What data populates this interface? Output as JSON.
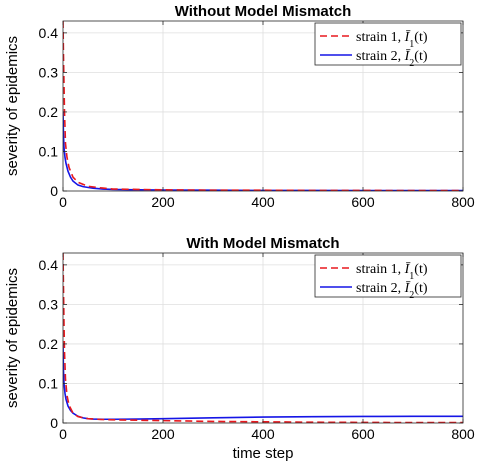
{
  "chart_data": [
    {
      "type": "line",
      "title": "Without Model Mismatch",
      "xlabel": "",
      "ylabel": "severity of epidemics",
      "xlim": [
        0,
        800
      ],
      "ylim": [
        0,
        0.43
      ],
      "grid": true,
      "legend_position": "top-right",
      "x_ticks": [
        "0",
        "200",
        "400",
        "600",
        "800"
      ],
      "y_ticks": [
        "0",
        "0.1",
        "0.2",
        "0.3",
        "0.4"
      ],
      "series": [
        {
          "name": "strain 1, Ī1(t)",
          "legend_prefix": "strain 1, ",
          "legend_var": "Ī",
          "legend_sub": "1",
          "legend_suffix": "(t)",
          "color": "#e8191e",
          "dash": "dashed",
          "x": [
            0,
            1,
            2,
            3,
            5,
            8,
            12,
            20,
            30,
            50,
            75,
            100,
            150,
            200,
            300,
            400,
            500,
            600,
            700,
            800
          ],
          "y": [
            0.43,
            0.34,
            0.27,
            0.2,
            0.12,
            0.085,
            0.06,
            0.035,
            0.022,
            0.012,
            0.008,
            0.005,
            0.004,
            0.003,
            0.002,
            0.002,
            0.0015,
            0.0015,
            0.001,
            0.001
          ]
        },
        {
          "name": "strain 2, Ī2(t)",
          "legend_prefix": "strain 2, ",
          "legend_var": "Ī",
          "legend_sub": "2",
          "legend_suffix": "(t)",
          "color": "#1515e6",
          "dash": "solid",
          "x": [
            0,
            1,
            2,
            4,
            6,
            10,
            15,
            20,
            30,
            40,
            60,
            80,
            100,
            150,
            200,
            300,
            400,
            500,
            600,
            700,
            800
          ],
          "y": [
            0.2,
            0.14,
            0.11,
            0.085,
            0.07,
            0.05,
            0.035,
            0.025,
            0.015,
            0.011,
            0.007,
            0.005,
            0.004,
            0.003,
            0.0025,
            0.002,
            0.0015,
            0.0015,
            0.001,
            0.001,
            0.001
          ]
        }
      ]
    },
    {
      "type": "line",
      "title": "With Model Mismatch",
      "xlabel": "time step",
      "ylabel": "severity of epidemics",
      "xlim": [
        0,
        800
      ],
      "ylim": [
        0,
        0.43
      ],
      "grid": true,
      "legend_position": "top-right",
      "x_ticks": [
        "0",
        "200",
        "400",
        "600",
        "800"
      ],
      "y_ticks": [
        "0",
        "0.1",
        "0.2",
        "0.3",
        "0.4"
      ],
      "series": [
        {
          "name": "strain 1, Ī1(t)",
          "legend_prefix": "strain 1, ",
          "legend_var": "Ī",
          "legend_sub": "1",
          "legend_suffix": "(t)",
          "color": "#e8191e",
          "dash": "dashed",
          "x": [
            0,
            1,
            2,
            3,
            5,
            8,
            12,
            20,
            30,
            50,
            75,
            100,
            150,
            200,
            300,
            400,
            500,
            600,
            700,
            800
          ],
          "y": [
            0.43,
            0.34,
            0.25,
            0.18,
            0.11,
            0.07,
            0.045,
            0.025,
            0.016,
            0.011,
            0.009,
            0.008,
            0.007,
            0.006,
            0.004,
            0.003,
            0.002,
            0.0015,
            0.001,
            0.001
          ]
        },
        {
          "name": "strain 2, Ī2(t)",
          "legend_prefix": "strain 2, ",
          "legend_var": "Ī",
          "legend_sub": "2",
          "legend_suffix": "(t)",
          "color": "#1515e6",
          "dash": "solid",
          "x": [
            0,
            1,
            2,
            4,
            6,
            10,
            15,
            20,
            30,
            40,
            50,
            60,
            80,
            100,
            150,
            200,
            300,
            400,
            500,
            600,
            700,
            800
          ],
          "y": [
            0.2,
            0.13,
            0.1,
            0.075,
            0.06,
            0.043,
            0.032,
            0.025,
            0.017,
            0.013,
            0.011,
            0.01,
            0.0095,
            0.0095,
            0.01,
            0.011,
            0.013,
            0.015,
            0.016,
            0.0165,
            0.017,
            0.017
          ]
        }
      ]
    }
  ]
}
